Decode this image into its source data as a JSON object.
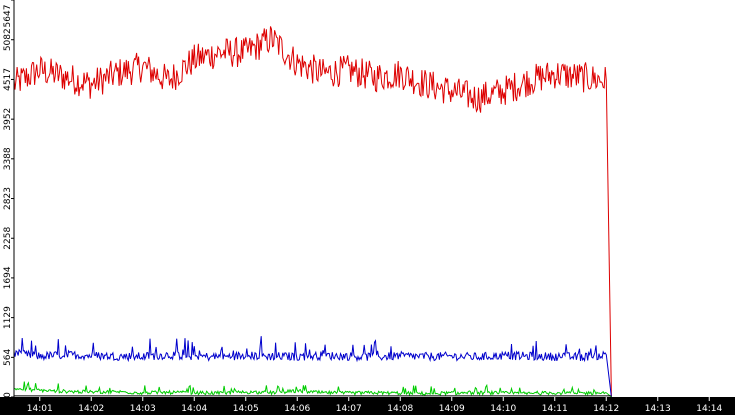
{
  "chart_data": {
    "type": "line",
    "title": "",
    "xlabel": "",
    "ylabel": "",
    "ylim": [
      0,
      5647
    ],
    "xlim": [
      "14:00:30",
      "14:14:30"
    ],
    "grid": false,
    "legend": "none",
    "y_ticks": [
      "0",
      "564",
      "1129",
      "1694",
      "2258",
      "2823",
      "3388",
      "3952",
      "4517",
      "5082",
      "5647"
    ],
    "x_ticks": [
      "14:01",
      "14:02",
      "14:03",
      "14:04",
      "14:05",
      "14:06",
      "14:07",
      "14:08",
      "14:09",
      "14:10",
      "14:11",
      "14:12",
      "14:13",
      "14:14"
    ],
    "axis_color": "#000000",
    "background_color": "#ffffff",
    "series": [
      {
        "color": "#dd0000",
        "x": [
          "14:00:30",
          "14:01:00",
          "14:01:30",
          "14:02:00",
          "14:02:30",
          "14:03:00",
          "14:03:30",
          "14:04:00",
          "14:04:30",
          "14:05:00",
          "14:05:30",
          "14:06:00",
          "14:06:30",
          "14:07:00",
          "14:07:30",
          "14:08:00",
          "14:08:30",
          "14:09:00",
          "14:09:30",
          "14:10:00",
          "14:10:30",
          "14:11:00",
          "14:11:30",
          "14:12:00",
          "14:12:06"
        ],
        "values": [
          4450,
          4650,
          4550,
          4450,
          4600,
          4700,
          4500,
          4800,
          4900,
          4900,
          5100,
          4750,
          4600,
          4650,
          4550,
          4600,
          4450,
          4350,
          4250,
          4350,
          4500,
          4600,
          4550,
          4500,
          0
        ]
      },
      {
        "color": "#0000cc",
        "x": [
          "14:00:30",
          "14:01:00",
          "14:01:30",
          "14:02:00",
          "14:02:30",
          "14:03:00",
          "14:03:30",
          "14:04:00",
          "14:04:30",
          "14:05:00",
          "14:05:30",
          "14:06:00",
          "14:06:30",
          "14:07:00",
          "14:07:30",
          "14:08:00",
          "14:08:30",
          "14:09:00",
          "14:09:30",
          "14:10:00",
          "14:10:30",
          "14:11:00",
          "14:11:30",
          "14:12:00",
          "14:12:06"
        ],
        "values": [
          620,
          580,
          600,
          590,
          580,
          575,
          600,
          580,
          570,
          590,
          580,
          575,
          590,
          580,
          570,
          585,
          575,
          580,
          570,
          590,
          580,
          575,
          570,
          600,
          0
        ]
      },
      {
        "color": "#00cc00",
        "x": [
          "14:00:30",
          "14:01:00",
          "14:01:30",
          "14:02:00",
          "14:02:30",
          "14:03:00",
          "14:03:30",
          "14:04:00",
          "14:04:30",
          "14:05:00",
          "14:05:30",
          "14:06:00",
          "14:06:30",
          "14:07:00",
          "14:07:30",
          "14:08:00",
          "14:08:30",
          "14:09:00",
          "14:09:30",
          "14:10:00",
          "14:10:30",
          "14:11:00",
          "14:11:30",
          "14:12:00",
          "14:12:06"
        ],
        "values": [
          120,
          95,
          80,
          70,
          75,
          60,
          65,
          60,
          55,
          70,
          60,
          85,
          60,
          55,
          60,
          55,
          50,
          55,
          60,
          55,
          50,
          60,
          55,
          60,
          0
        ]
      },
      {
        "color": "#000000",
        "x": [
          "14:00:30",
          "14:12:06"
        ],
        "values": [
          15,
          15
        ]
      }
    ]
  }
}
